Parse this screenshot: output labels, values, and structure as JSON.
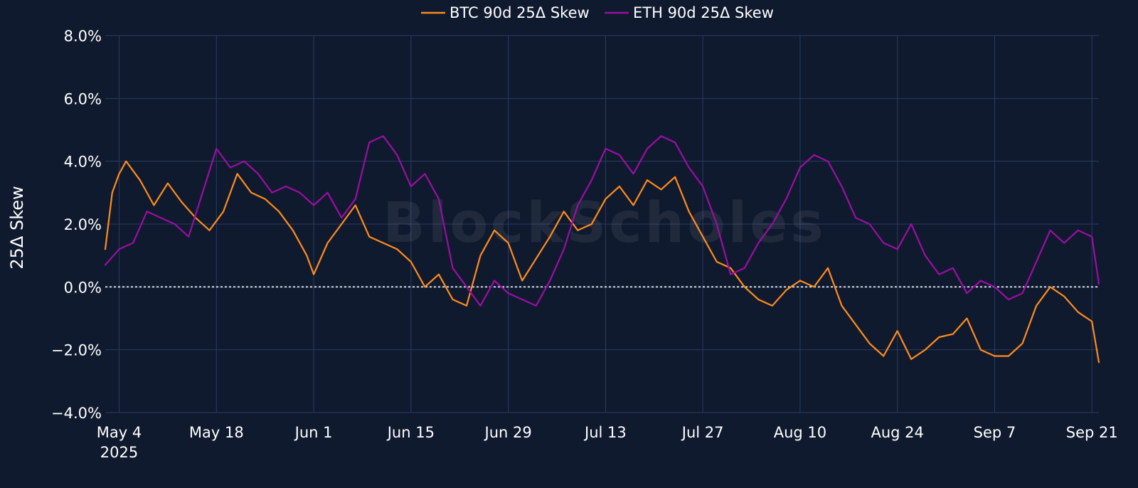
{
  "chart_data": {
    "type": "line",
    "title": "",
    "ylabel": "25Δ Skew",
    "xlabel": "",
    "ylim": [
      -4.0,
      8.0
    ],
    "xlim": [
      "2025-05-02",
      "2025-09-22"
    ],
    "y_ticks": [
      -4.0,
      -2.0,
      0.0,
      2.0,
      4.0,
      6.0,
      8.0
    ],
    "y_tick_labels": [
      "−4.0%",
      "−2.0%",
      "0.0%",
      "2.0%",
      "4.0%",
      "6.0%",
      "8.0%"
    ],
    "x_ticks": [
      "2025-05-04",
      "2025-05-18",
      "2025-06-01",
      "2025-06-15",
      "2025-06-29",
      "2025-07-13",
      "2025-07-27",
      "2025-08-10",
      "2025-08-24",
      "2025-09-07",
      "2025-09-21"
    ],
    "x_tick_labels": [
      "May 4",
      "May 18",
      "Jun 1",
      "Jun 15",
      "Jun 29",
      "Jul 13",
      "Jul 27",
      "Aug 10",
      "Aug 24",
      "Sep 7",
      "Sep 21"
    ],
    "x_tick_sublabel": "2025",
    "grid": true,
    "zero_line": {
      "value": 0.0,
      "style": "dotted",
      "color": "#ffffff"
    },
    "legend_position": "top-center",
    "watermark": "BlockScholes",
    "series": [
      {
        "name": "BTC 90d 25Δ Skew",
        "color": "#ff8c1a",
        "x": [
          "2025-05-02",
          "2025-05-03",
          "2025-05-04",
          "2025-05-05",
          "2025-05-07",
          "2025-05-09",
          "2025-05-11",
          "2025-05-13",
          "2025-05-15",
          "2025-05-17",
          "2025-05-19",
          "2025-05-21",
          "2025-05-23",
          "2025-05-25",
          "2025-05-27",
          "2025-05-29",
          "2025-05-31",
          "2025-06-01",
          "2025-06-03",
          "2025-06-05",
          "2025-06-07",
          "2025-06-09",
          "2025-06-11",
          "2025-06-13",
          "2025-06-15",
          "2025-06-17",
          "2025-06-19",
          "2025-06-21",
          "2025-06-23",
          "2025-06-25",
          "2025-06-27",
          "2025-06-29",
          "2025-07-01",
          "2025-07-03",
          "2025-07-05",
          "2025-07-07",
          "2025-07-09",
          "2025-07-11",
          "2025-07-13",
          "2025-07-15",
          "2025-07-17",
          "2025-07-19",
          "2025-07-21",
          "2025-07-23",
          "2025-07-25",
          "2025-07-27",
          "2025-07-29",
          "2025-07-31",
          "2025-08-02",
          "2025-08-04",
          "2025-08-06",
          "2025-08-08",
          "2025-08-10",
          "2025-08-12",
          "2025-08-14",
          "2025-08-16",
          "2025-08-18",
          "2025-08-20",
          "2025-08-22",
          "2025-08-24",
          "2025-08-26",
          "2025-08-28",
          "2025-08-30",
          "2025-09-01",
          "2025-09-03",
          "2025-09-05",
          "2025-09-07",
          "2025-09-09",
          "2025-09-11",
          "2025-09-13",
          "2025-09-15",
          "2025-09-17",
          "2025-09-19",
          "2025-09-21",
          "2025-09-22"
        ],
        "values": [
          1.2,
          3.0,
          3.6,
          4.0,
          3.4,
          2.6,
          3.3,
          2.7,
          2.2,
          1.8,
          2.4,
          3.6,
          3.0,
          2.8,
          2.4,
          1.8,
          1.0,
          0.4,
          1.4,
          2.0,
          2.6,
          1.6,
          1.4,
          1.2,
          0.8,
          0.0,
          0.4,
          -0.4,
          -0.6,
          1.0,
          1.8,
          1.4,
          0.2,
          0.9,
          1.6,
          2.4,
          1.8,
          2.0,
          2.8,
          3.2,
          2.6,
          3.4,
          3.1,
          3.5,
          2.4,
          1.6,
          0.8,
          0.6,
          0.0,
          -0.4,
          -0.6,
          -0.1,
          0.2,
          0.0,
          0.6,
          -0.6,
          -1.2,
          -1.8,
          -2.2,
          -1.4,
          -2.3,
          -2.0,
          -1.6,
          -1.5,
          -1.0,
          -2.0,
          -2.2,
          -2.2,
          -1.8,
          -0.6,
          0.0,
          -0.3,
          -0.8,
          -1.1,
          -2.4
        ]
      },
      {
        "name": "ETH 90d 25Δ Skew",
        "color": "#9b0ea3",
        "x": [
          "2025-05-02",
          "2025-05-04",
          "2025-05-06",
          "2025-05-08",
          "2025-05-10",
          "2025-05-12",
          "2025-05-14",
          "2025-05-16",
          "2025-05-18",
          "2025-05-20",
          "2025-05-22",
          "2025-05-24",
          "2025-05-26",
          "2025-05-28",
          "2025-05-30",
          "2025-06-01",
          "2025-06-03",
          "2025-06-05",
          "2025-06-07",
          "2025-06-09",
          "2025-06-11",
          "2025-06-13",
          "2025-06-15",
          "2025-06-17",
          "2025-06-19",
          "2025-06-21",
          "2025-06-23",
          "2025-06-25",
          "2025-06-27",
          "2025-06-29",
          "2025-07-01",
          "2025-07-03",
          "2025-07-05",
          "2025-07-07",
          "2025-07-09",
          "2025-07-11",
          "2025-07-13",
          "2025-07-15",
          "2025-07-17",
          "2025-07-19",
          "2025-07-21",
          "2025-07-23",
          "2025-07-25",
          "2025-07-27",
          "2025-07-29",
          "2025-07-31",
          "2025-08-02",
          "2025-08-04",
          "2025-08-06",
          "2025-08-08",
          "2025-08-10",
          "2025-08-12",
          "2025-08-14",
          "2025-08-16",
          "2025-08-18",
          "2025-08-20",
          "2025-08-22",
          "2025-08-24",
          "2025-08-26",
          "2025-08-28",
          "2025-08-30",
          "2025-09-01",
          "2025-09-03",
          "2025-09-05",
          "2025-09-07",
          "2025-09-09",
          "2025-09-11",
          "2025-09-13",
          "2025-09-15",
          "2025-09-17",
          "2025-09-19",
          "2025-09-21",
          "2025-09-22"
        ],
        "values": [
          0.7,
          1.2,
          1.4,
          2.4,
          2.2,
          2.0,
          1.6,
          3.0,
          4.4,
          3.8,
          4.0,
          3.6,
          3.0,
          3.2,
          3.0,
          2.6,
          3.0,
          2.2,
          2.8,
          4.6,
          4.8,
          4.2,
          3.2,
          3.6,
          2.8,
          0.6,
          0.0,
          -0.6,
          0.2,
          -0.2,
          -0.4,
          -0.6,
          0.2,
          1.2,
          2.6,
          3.4,
          4.4,
          4.2,
          3.6,
          4.4,
          4.8,
          4.6,
          3.8,
          3.2,
          2.0,
          0.4,
          0.6,
          1.4,
          2.0,
          2.8,
          3.8,
          4.2,
          4.0,
          3.2,
          2.2,
          2.0,
          1.4,
          1.2,
          2.0,
          1.0,
          0.4,
          0.6,
          -0.2,
          0.2,
          0.0,
          -0.4,
          -0.2,
          0.8,
          1.8,
          1.4,
          1.8,
          1.6,
          0.1
        ]
      }
    ]
  }
}
